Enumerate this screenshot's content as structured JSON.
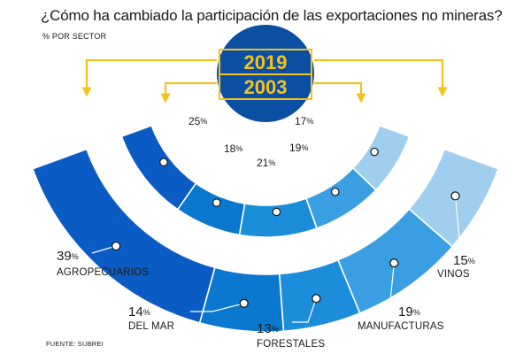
{
  "header": {
    "title": "¿Cómo ha cambiado la participación de las exportaciones no mineras?",
    "subtitle": "% POR SECTOR"
  },
  "footer": {
    "source": "FUENTE: SUBREI"
  },
  "colors": {
    "gold": "#f4c21b",
    "center_circle": "#0b4fa3",
    "sectors": [
      "#0a5cc4",
      "#0b78d0",
      "#1b8ddb",
      "#3a9fe2",
      "#6db5ea",
      "#a0ceef"
    ]
  },
  "chart_data": {
    "type": "semicircular-donut",
    "title": "¿Cómo ha cambiado la participación de las exportaciones no mineras?",
    "subtitle": "% POR SECTOR",
    "rings": [
      {
        "year": "2019",
        "ring": "outer",
        "series": [
          {
            "sector": "AGROPECUARIOS",
            "value": 39
          },
          {
            "sector": "DEL MAR",
            "value": 14
          },
          {
            "sector": "FORESTALES",
            "value": 13
          },
          {
            "sector": "MANUFACTURAS",
            "value": 19
          },
          {
            "sector": "VINOS",
            "value": 15
          }
        ]
      },
      {
        "year": "2003",
        "ring": "inner",
        "series": [
          {
            "sector": "AGROPECUARIOS",
            "value": 25
          },
          {
            "sector": "DEL MAR",
            "value": 18
          },
          {
            "sector": "FORESTALES",
            "value": 21
          },
          {
            "sector": "MANUFACTURAS",
            "value": 19
          },
          {
            "sector": "VINOS",
            "value": 17
          }
        ]
      }
    ],
    "pct_sign": "%",
    "source": "FUENTE: SUBREI"
  }
}
